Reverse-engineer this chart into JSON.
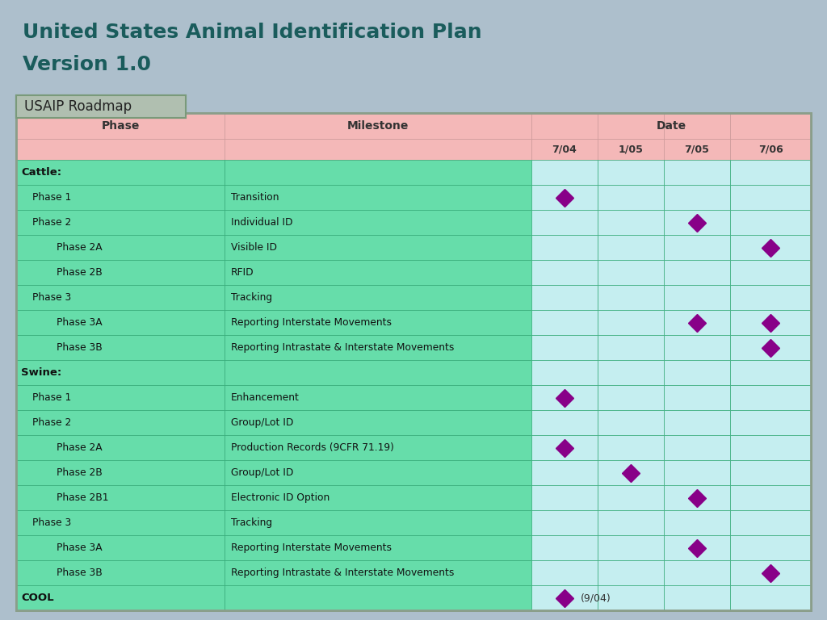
{
  "title_line1": "United States Animal Identification Plan",
  "title_line2": "Version 1.0",
  "subtitle": "USAIP Roadmap",
  "bg_color": "#adbfcc",
  "title_color": "#1a5c5c",
  "table_outer_border": "#8a9e8a",
  "header_bg": "#f4b8b8",
  "cell_bg_green": "#66ddaa",
  "cell_bg_light_blue": "#c5eef0",
  "diamond_color": "#880088",
  "date_cols": [
    "7/04",
    "1/05",
    "7/05",
    "7/06"
  ],
  "rows": [
    {
      "phase": "Cattle:",
      "milestone": "",
      "is_section": true,
      "indent": false,
      "diamonds": []
    },
    {
      "phase": "Phase 1",
      "milestone": "Transition",
      "is_section": false,
      "indent": false,
      "diamonds": [
        0
      ]
    },
    {
      "phase": "Phase 2",
      "milestone": "Individual ID",
      "is_section": false,
      "indent": false,
      "diamonds": [
        2
      ]
    },
    {
      "phase": "Phase 2A",
      "milestone": "Visible ID",
      "is_section": false,
      "indent": true,
      "diamonds": [
        3
      ]
    },
    {
      "phase": "Phase 2B",
      "milestone": "RFID",
      "is_section": false,
      "indent": true,
      "diamonds": []
    },
    {
      "phase": "Phase 3",
      "milestone": "Tracking",
      "is_section": false,
      "indent": false,
      "diamonds": []
    },
    {
      "phase": "Phase 3A",
      "milestone": "Reporting Interstate Movements",
      "is_section": false,
      "indent": true,
      "diamonds": [
        2,
        3
      ]
    },
    {
      "phase": "Phase 3B",
      "milestone": "Reporting Intrastate & Interstate Movements",
      "is_section": false,
      "indent": true,
      "diamonds": [
        3
      ]
    },
    {
      "phase": "Swine:",
      "milestone": "",
      "is_section": true,
      "indent": false,
      "diamonds": []
    },
    {
      "phase": "Phase 1",
      "milestone": "Enhancement",
      "is_section": false,
      "indent": false,
      "diamonds": [
        0
      ]
    },
    {
      "phase": "Phase 2",
      "milestone": "Group/Lot ID",
      "is_section": false,
      "indent": false,
      "diamonds": []
    },
    {
      "phase": "Phase 2A",
      "milestone": "Production Records (9CFR 71.19)",
      "is_section": false,
      "indent": true,
      "diamonds": [
        0
      ]
    },
    {
      "phase": "Phase 2B",
      "milestone": "Group/Lot ID",
      "is_section": false,
      "indent": true,
      "diamonds": [
        1
      ]
    },
    {
      "phase": "Phase 2B1",
      "milestone": "Electronic ID Option",
      "is_section": false,
      "indent": true,
      "diamonds": [
        2
      ]
    },
    {
      "phase": "Phase 3",
      "milestone": "Tracking",
      "is_section": false,
      "indent": false,
      "diamonds": []
    },
    {
      "phase": "Phase 3A",
      "milestone": "Reporting Interstate Movements",
      "is_section": false,
      "indent": true,
      "diamonds": [
        2
      ]
    },
    {
      "phase": "Phase 3B",
      "milestone": "Reporting Intrastate & Interstate Movements",
      "is_section": false,
      "indent": true,
      "diamonds": [
        3
      ]
    },
    {
      "phase": "COOL",
      "milestone": "",
      "is_cool": true,
      "indent": false,
      "diamonds": [
        0
      ],
      "cool_label": "(9/04)"
    }
  ],
  "tab_color": "#b0bfb0",
  "tab_border": "#7a9a7a"
}
